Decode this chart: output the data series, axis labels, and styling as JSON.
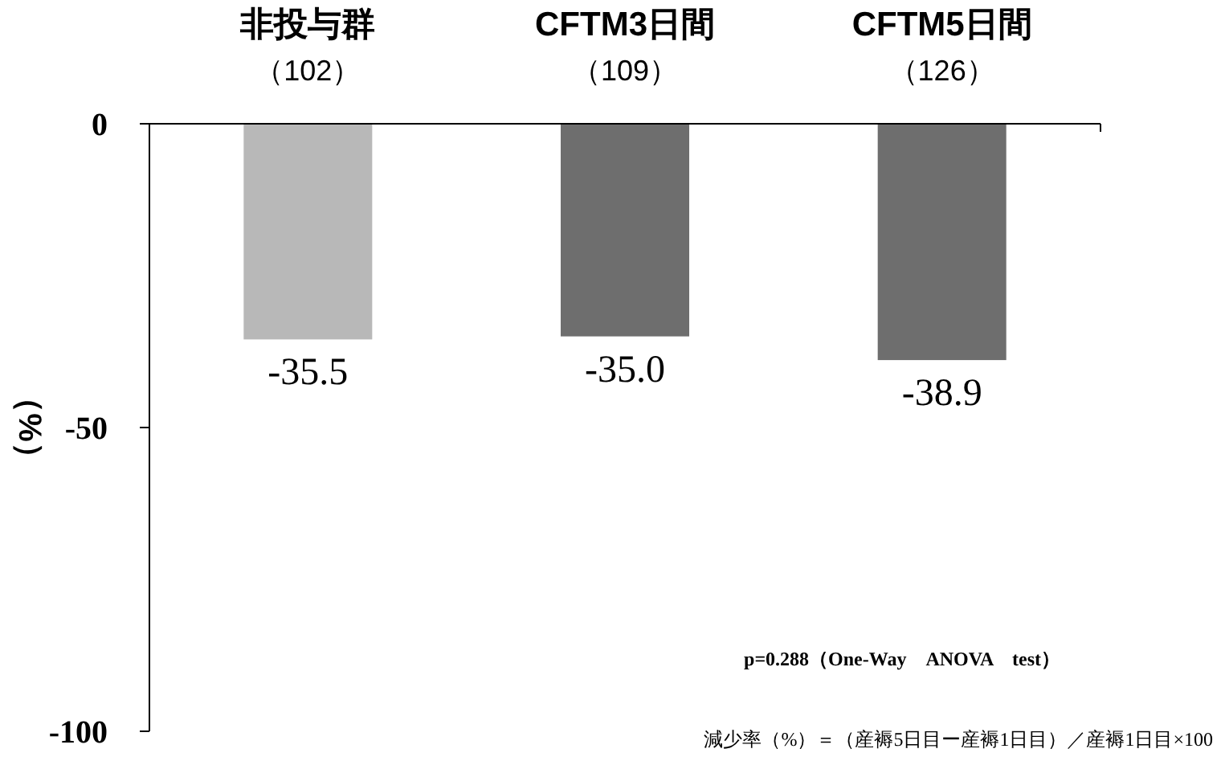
{
  "chart_data": {
    "type": "bar",
    "categories": [
      "非投与群",
      "CFTM3日間",
      "CFTM5日間"
    ],
    "values": [
      -35.5,
      -35.0,
      -38.9
    ],
    "colors": [
      "#b8b8b8",
      "#6e6e6e",
      "#6e6e6e"
    ],
    "value_labels": [
      "-35.5",
      "-35.0",
      "-38.9"
    ],
    "ylim": [
      -100,
      0
    ],
    "yticks": [
      0,
      -50,
      -100
    ],
    "ylabel": "（%）",
    "grid": false,
    "annotations": [
      "（102）",
      "（109）",
      "（126）",
      "p=0.288（One-Way　ANOVA　test）",
      "減少率（%）＝（産褥5日目ー産褥1日目）／産褥1日目×100"
    ]
  }
}
